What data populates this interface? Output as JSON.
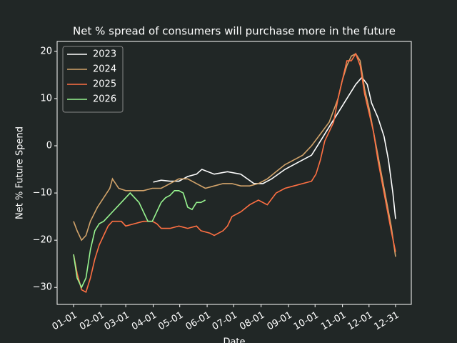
{
  "chart_data": {
    "type": "line",
    "title": "Net % spread of consumers will purchase more in the future",
    "xlabel": "Date",
    "ylabel": "Net % Future Spend",
    "xlim": [
      -17.6,
      382.8
    ],
    "ylim": [
      -33.6,
      22.1
    ],
    "xticks": [
      {
        "value": 1,
        "label": "01-01"
      },
      {
        "value": 32,
        "label": "02-01"
      },
      {
        "value": 60,
        "label": "03-01"
      },
      {
        "value": 91,
        "label": "04-01"
      },
      {
        "value": 121,
        "label": "05-01"
      },
      {
        "value": 152,
        "label": "06-01"
      },
      {
        "value": 182,
        "label": "07-01"
      },
      {
        "value": 213,
        "label": "08-01"
      },
      {
        "value": 244,
        "label": "09-01"
      },
      {
        "value": 274,
        "label": "10-01"
      },
      {
        "value": 305,
        "label": "11-01"
      },
      {
        "value": 335,
        "label": "12-01"
      },
      {
        "value": 365,
        "label": "12-31"
      }
    ],
    "yticks": [
      {
        "value": -30,
        "label": "−30"
      },
      {
        "value": -20,
        "label": "−20"
      },
      {
        "value": -10,
        "label": "−10"
      },
      0,
      10,
      20
    ],
    "legend": "upper left",
    "grid": false,
    "series": [
      {
        "name": "2023",
        "color": "#ffffff",
        "x": [
          91,
          100,
          110,
          120,
          130,
          140,
          146,
          160,
          175,
          190,
          205,
          215,
          225,
          240,
          255,
          270,
          280,
          290,
          300,
          310,
          320,
          327,
          333,
          338,
          345,
          352,
          357,
          362,
          365
        ],
        "values": [
          -7.7,
          -7.3,
          -7.5,
          -7.5,
          -6.5,
          -6,
          -5,
          -6,
          -5.5,
          -6,
          -8,
          -8,
          -7,
          -5,
          -3.5,
          -2,
          1,
          4,
          7,
          10,
          13,
          14.5,
          13,
          9,
          6,
          2,
          -3,
          -10,
          -15.5
        ]
      },
      {
        "name": "2024",
        "color": "#d2a36a",
        "x": [
          1,
          5,
          10,
          15,
          20,
          28,
          35,
          42,
          45,
          52,
          60,
          70,
          80,
          90,
          100,
          110,
          120,
          130,
          140,
          150,
          160,
          170,
          180,
          190,
          200,
          210,
          220,
          230,
          240,
          250,
          260,
          270,
          280,
          290,
          300,
          305,
          310,
          315,
          320,
          325,
          330,
          335,
          340,
          345,
          350,
          355,
          360,
          365
        ],
        "values": [
          -16,
          -18,
          -20,
          -19,
          -16,
          -13,
          -11,
          -9,
          -7,
          -9,
          -9.5,
          -9.5,
          -9.5,
          -9,
          -9,
          -8,
          -7,
          -7,
          -8,
          -9,
          -8.5,
          -8,
          -8,
          -8.5,
          -8.5,
          -8,
          -7,
          -5.5,
          -4,
          -3,
          -2,
          0,
          2.5,
          5,
          10,
          14,
          17,
          19,
          19.5,
          18,
          12,
          8,
          3,
          -2,
          -7,
          -12,
          -17,
          -23.5
        ]
      },
      {
        "name": "2025",
        "color": "#ff7043",
        "x": [
          1,
          5,
          10,
          15,
          20,
          25,
          30,
          35,
          40,
          45,
          55,
          60,
          70,
          80,
          90,
          95,
          100,
          110,
          120,
          130,
          140,
          145,
          155,
          160,
          170,
          175,
          180,
          190,
          200,
          210,
          220,
          230,
          240,
          250,
          260,
          270,
          275,
          280,
          285,
          290,
          295,
          300,
          305,
          310,
          315,
          320,
          325,
          330,
          335,
          340,
          345,
          350,
          355,
          360,
          365
        ],
        "values": [
          -23,
          -27,
          -30.5,
          -31,
          -28,
          -24,
          -21,
          -19,
          -17,
          -16,
          -16,
          -17,
          -16.5,
          -16,
          -16,
          -16.5,
          -17.5,
          -17.5,
          -17,
          -17.5,
          -17,
          -18,
          -18.5,
          -19,
          -18,
          -17,
          -15,
          -14,
          -12.5,
          -11.5,
          -12.5,
          -10,
          -9,
          -8.5,
          -8,
          -7.5,
          -6,
          -3,
          1,
          3,
          5,
          10,
          14,
          18,
          18,
          19.5,
          17,
          11,
          7,
          3,
          -3,
          -8,
          -13,
          -18,
          -22.5
        ]
      },
      {
        "name": "2026",
        "color": "#98f590",
        "x": [
          1,
          5,
          10,
          15,
          20,
          25,
          30,
          35,
          40,
          45,
          50,
          55,
          60,
          65,
          70,
          75,
          80,
          85,
          90,
          95,
          100,
          105,
          110,
          115,
          120,
          125,
          130,
          135,
          140,
          145,
          150
        ],
        "values": [
          -23,
          -28,
          -30,
          -28,
          -22,
          -18,
          -16.5,
          -16,
          -15,
          -14,
          -13,
          -12,
          -11,
          -10,
          -11,
          -12,
          -14,
          -16,
          -16,
          -14,
          -12,
          -11,
          -10.5,
          -9.5,
          -9.5,
          -10,
          -13,
          -13.5,
          -12,
          -12,
          -11.5
        ]
      }
    ]
  }
}
